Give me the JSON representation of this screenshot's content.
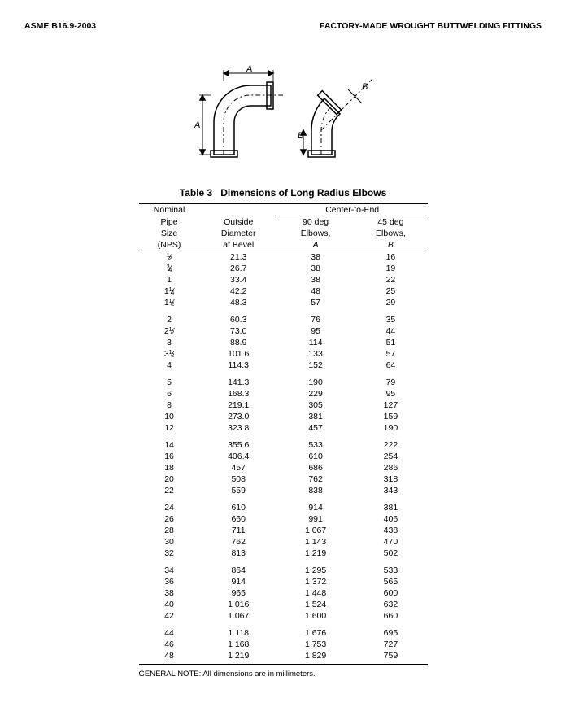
{
  "header": {
    "left": "ASME B16.9-2003",
    "right": "FACTORY-MADE WROUGHT BUTTWELDING FITTINGS"
  },
  "diagram": {
    "label_A": "A",
    "label_B": "B"
  },
  "table": {
    "caption_prefix": "Table 3",
    "caption": "Dimensions of Long Radius Elbows",
    "col_nominal1": "Nominal",
    "col_nominal2": "Pipe",
    "col_nominal3": "Size",
    "col_nominal4": "(NPS)",
    "col_od1": "Outside",
    "col_od2": "Diameter",
    "col_od3": "at Bevel",
    "col_ctr": "Center-to-End",
    "col_a1": "90 deg",
    "col_a2": "Elbows,",
    "col_a3": "A",
    "col_b1": "45 deg",
    "col_b2": "Elbows,",
    "col_b3": "B",
    "groups": [
      [
        {
          "nps": "½",
          "od": "21.3",
          "a": "38",
          "b": "16"
        },
        {
          "nps": "¾",
          "od": "26.7",
          "a": "38",
          "b": "19"
        },
        {
          "nps": "1",
          "od": "33.4",
          "a": "38",
          "b": "22"
        },
        {
          "nps": "1¼",
          "od": "42.2",
          "a": "48",
          "b": "25"
        },
        {
          "nps": "1½",
          "od": "48.3",
          "a": "57",
          "b": "29"
        }
      ],
      [
        {
          "nps": "2",
          "od": "60.3",
          "a": "76",
          "b": "35"
        },
        {
          "nps": "2½",
          "od": "73.0",
          "a": "95",
          "b": "44"
        },
        {
          "nps": "3",
          "od": "88.9",
          "a": "114",
          "b": "51"
        },
        {
          "nps": "3½",
          "od": "101.6",
          "a": "133",
          "b": "57"
        },
        {
          "nps": "4",
          "od": "114.3",
          "a": "152",
          "b": "64"
        }
      ],
      [
        {
          "nps": "5",
          "od": "141.3",
          "a": "190",
          "b": "79"
        },
        {
          "nps": "6",
          "od": "168.3",
          "a": "229",
          "b": "95"
        },
        {
          "nps": "8",
          "od": "219.1",
          "a": "305",
          "b": "127"
        },
        {
          "nps": "10",
          "od": "273.0",
          "a": "381",
          "b": "159"
        },
        {
          "nps": "12",
          "od": "323.8",
          "a": "457",
          "b": "190"
        }
      ],
      [
        {
          "nps": "14",
          "od": "355.6",
          "a": "533",
          "b": "222"
        },
        {
          "nps": "16",
          "od": "406.4",
          "a": "610",
          "b": "254"
        },
        {
          "nps": "18",
          "od": "457",
          "a": "686",
          "b": "286"
        },
        {
          "nps": "20",
          "od": "508",
          "a": "762",
          "b": "318"
        },
        {
          "nps": "22",
          "od": "559",
          "a": "838",
          "b": "343"
        }
      ],
      [
        {
          "nps": "24",
          "od": "610",
          "a": "914",
          "b": "381"
        },
        {
          "nps": "26",
          "od": "660",
          "a": "991",
          "b": "406"
        },
        {
          "nps": "28",
          "od": "711",
          "a": "1 067",
          "b": "438"
        },
        {
          "nps": "30",
          "od": "762",
          "a": "1 143",
          "b": "470"
        },
        {
          "nps": "32",
          "od": "813",
          "a": "1 219",
          "b": "502"
        }
      ],
      [
        {
          "nps": "34",
          "od": "864",
          "a": "1 295",
          "b": "533"
        },
        {
          "nps": "36",
          "od": "914",
          "a": "1 372",
          "b": "565"
        },
        {
          "nps": "38",
          "od": "965",
          "a": "1 448",
          "b": "600"
        },
        {
          "nps": "40",
          "od": "1 016",
          "a": "1 524",
          "b": "632"
        },
        {
          "nps": "42",
          "od": "1 067",
          "a": "1 600",
          "b": "660"
        }
      ],
      [
        {
          "nps": "44",
          "od": "1 118",
          "a": "1 676",
          "b": "695"
        },
        {
          "nps": "46",
          "od": "1 168",
          "a": "1 753",
          "b": "727"
        },
        {
          "nps": "48",
          "od": "1 219",
          "a": "1 829",
          "b": "759"
        }
      ]
    ],
    "note": "GENERAL NOTE: All dimensions are in millimeters."
  }
}
